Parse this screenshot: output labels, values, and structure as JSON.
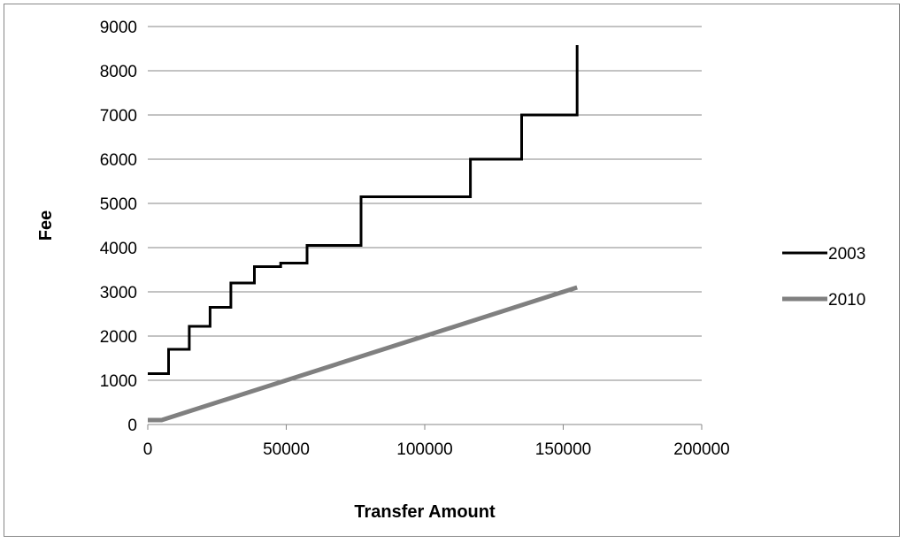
{
  "chart_data": {
    "type": "line",
    "title": "",
    "xlabel": "Transfer Amount",
    "ylabel": "Fee",
    "xlim": [
      0,
      200000
    ],
    "ylim": [
      0,
      9000
    ],
    "x_ticks": [
      0,
      50000,
      100000,
      150000,
      200000
    ],
    "y_ticks": [
      0,
      1000,
      2000,
      3000,
      4000,
      5000,
      6000,
      7000,
      8000,
      9000
    ],
    "grid": "horizontal",
    "legend_position": "right",
    "series": [
      {
        "name": "2003",
        "color": "#000000",
        "step": true,
        "points": [
          [
            0,
            1150
          ],
          [
            7500,
            1150
          ],
          [
            7500,
            1700
          ],
          [
            15000,
            1700
          ],
          [
            15000,
            2220
          ],
          [
            22500,
            2220
          ],
          [
            22500,
            2650
          ],
          [
            30000,
            2650
          ],
          [
            30000,
            3200
          ],
          [
            38500,
            3200
          ],
          [
            38500,
            3570
          ],
          [
            48000,
            3570
          ],
          [
            48000,
            3650
          ],
          [
            57500,
            3650
          ],
          [
            57500,
            4050
          ],
          [
            77000,
            4050
          ],
          [
            77000,
            5150
          ],
          [
            116500,
            5150
          ],
          [
            116500,
            6000
          ],
          [
            135000,
            6000
          ],
          [
            135000,
            7000
          ],
          [
            155000,
            7000
          ],
          [
            155000,
            8580
          ]
        ]
      },
      {
        "name": "2010",
        "color": "#808080",
        "step": false,
        "points": [
          [
            0,
            100
          ],
          [
            5000,
            100
          ],
          [
            155000,
            3100
          ]
        ]
      }
    ]
  }
}
